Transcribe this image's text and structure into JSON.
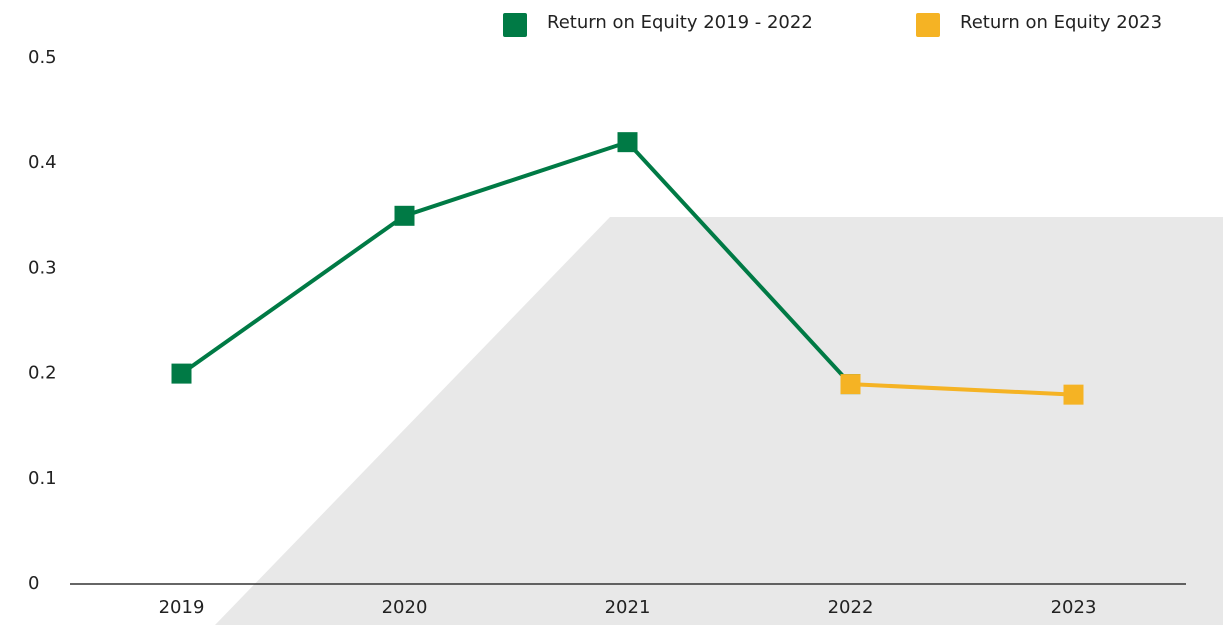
{
  "chart_data": {
    "type": "line",
    "categories": [
      "2019",
      "2020",
      "2021",
      "2022",
      "2023"
    ],
    "series": [
      {
        "name": "Return on Equity 2019 - 2022",
        "color": "#007a45",
        "values": [
          0.2,
          0.35,
          0.42,
          0.19,
          null
        ]
      },
      {
        "name": "Return on Equity 2023",
        "color": "#f5b324",
        "values": [
          null,
          null,
          null,
          0.19,
          0.18
        ]
      }
    ],
    "ylim": [
      0,
      0.5
    ],
    "yticks": [
      0,
      0.1,
      0.2,
      0.3,
      0.4,
      0.5
    ],
    "grid": false
  }
}
